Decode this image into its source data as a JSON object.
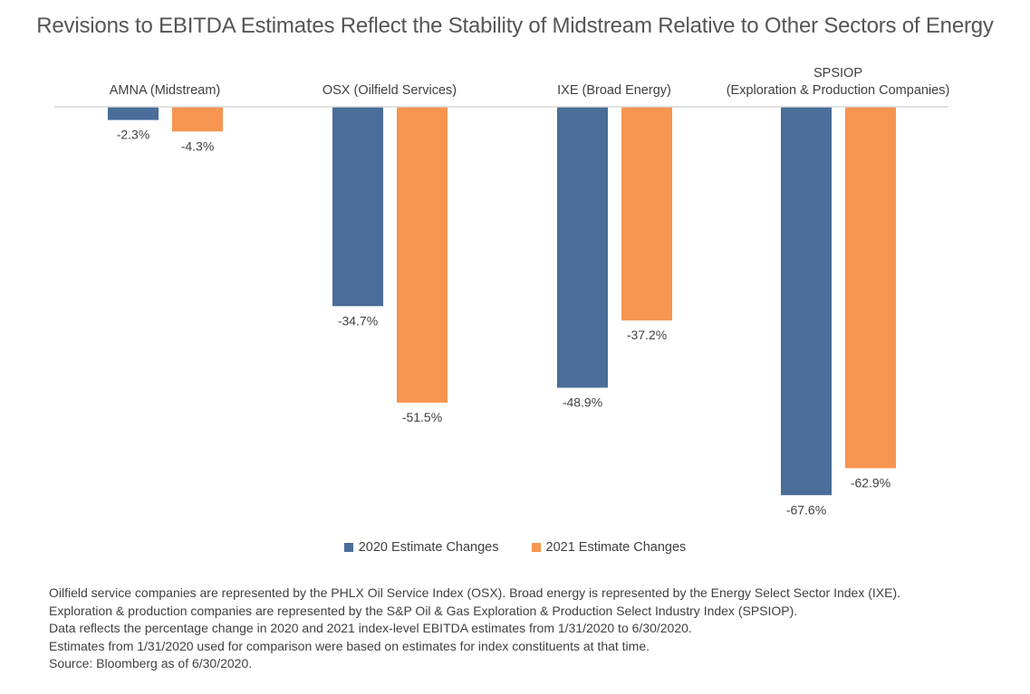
{
  "chart_data": {
    "type": "bar",
    "title": "Revisions to EBITDA Estimates Reflect the Stability of Midstream Relative to Other Sectors of Energy",
    "categories": [
      [
        "AMNA (Midstream)"
      ],
      [
        "OSX (Oilfield Services)"
      ],
      [
        "IXE (Broad Energy)"
      ],
      [
        "SPSIOP",
        "(Exploration & Production Companies)"
      ]
    ],
    "series": [
      {
        "name": "2020 Estimate Changes",
        "color": "#4A6D99",
        "values": [
          -2.3,
          -34.7,
          -48.9,
          -67.6
        ],
        "labels": [
          "-2.3%",
          "-34.7%",
          "-48.9%",
          "-67.6%"
        ]
      },
      {
        "name": "2021 Estimate Changes",
        "color": "#F69550",
        "values": [
          -4.3,
          -51.5,
          -37.2,
          -62.9
        ],
        "labels": [
          "-4.3%",
          "-51.5%",
          "-37.2%",
          "-62.9%"
        ]
      }
    ],
    "ylim": [
      -70,
      0
    ],
    "grid": false,
    "legend": "bottom",
    "data_labels": true
  },
  "notes": [
    "Oilfield service companies are represented by the PHLX Oil Service Index (OSX). Broad energy is represented by the Energy Select Sector Index (IXE).",
    "Exploration & production companies are represented by the S&P Oil & Gas Exploration & Production Select Industry Index (SPSIOP).",
    "Data reflects the percentage change in 2020 and 2021 index-level EBITDA estimates from 1/31/2020 to 6/30/2020.",
    "Estimates from 1/31/2020 used for comparison were based on estimates for index constituents at that time.",
    "Source: Bloomberg as of 6/30/2020."
  ]
}
